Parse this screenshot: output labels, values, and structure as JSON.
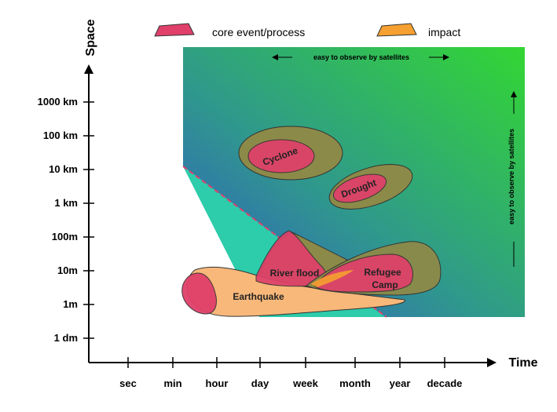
{
  "axes": {
    "y_title": "Space",
    "x_title": "Time",
    "y_ticks": [
      "1000 km",
      "100 km",
      "10 km",
      "1 km",
      "100m",
      "10m",
      "1m",
      "1 dm"
    ],
    "x_ticks": [
      "sec",
      "min",
      "hour",
      "day",
      "week",
      "month",
      "year",
      "decade"
    ]
  },
  "legend": {
    "core": "core event/process",
    "impact": "impact"
  },
  "notes": {
    "horizontal": "easy to observe by satellites",
    "vertical": "easy to observe by satellites"
  },
  "regions": {
    "cyclone": "Cyclone",
    "drought": "Drought",
    "river_flood": "River flood",
    "refugee_line1": "Refugee",
    "refugee_line2": "Camp",
    "earthquake": "Earthquake"
  },
  "colors": {
    "core": "#e0406a",
    "impact_olive": "#8c8a48",
    "impact_orange": "#f5a030",
    "earthquake_fill": "#f8b87a",
    "gradient_green": "#33d633",
    "gradient_blue": "#3355cc",
    "triangle_teal": "#22c9a6"
  }
}
